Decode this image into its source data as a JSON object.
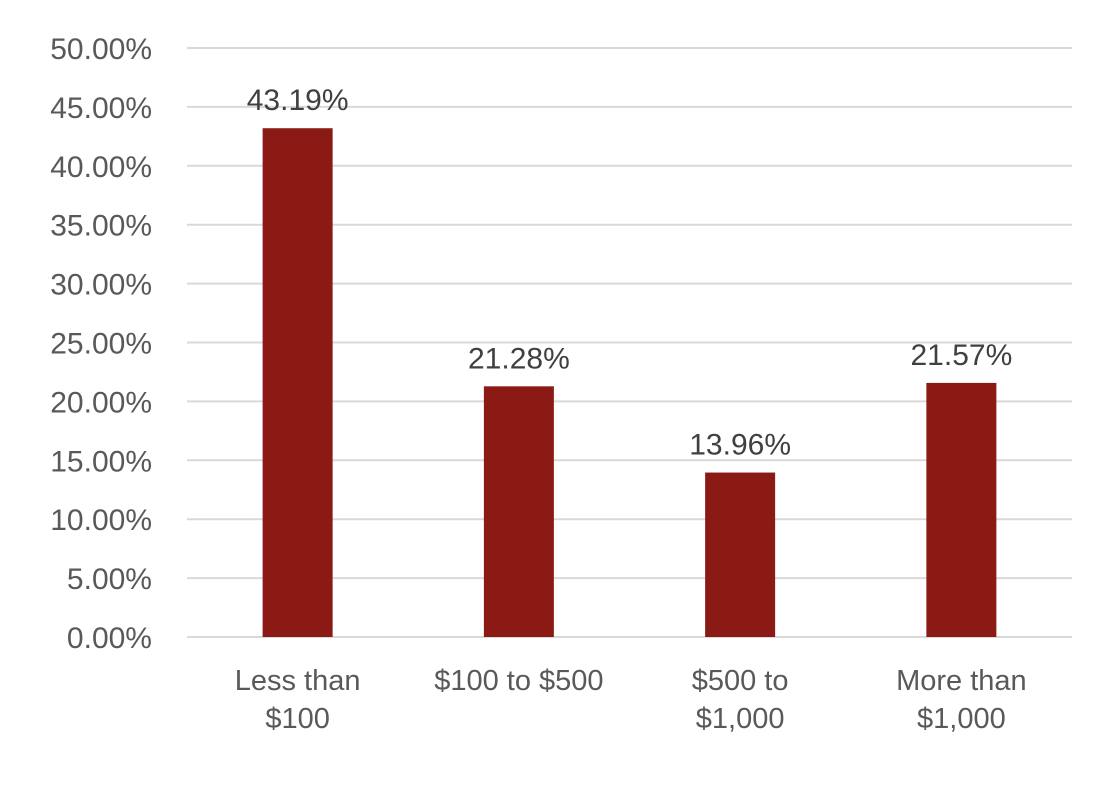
{
  "chart_data": {
    "type": "bar",
    "categories": [
      [
        "Less than",
        "$100"
      ],
      [
        "$100 to $500"
      ],
      [
        "$500 to",
        "$1,000"
      ],
      [
        "More than",
        "$1,000"
      ]
    ],
    "values": [
      43.19,
      21.28,
      13.96,
      21.57
    ],
    "data_labels": [
      "43.19%",
      "21.28%",
      "13.96%",
      "21.57%"
    ],
    "ylim": [
      0,
      50
    ],
    "y_ticks": [
      0,
      5,
      10,
      15,
      20,
      25,
      30,
      35,
      40,
      45,
      50
    ],
    "y_tick_labels": [
      "0.00%",
      "5.00%",
      "10.00%",
      "15.00%",
      "20.00%",
      "25.00%",
      "30.00%",
      "35.00%",
      "40.00%",
      "45.00%",
      "50.00%"
    ],
    "grid": true,
    "legend": "none",
    "title": "",
    "xlabel": "",
    "ylabel": "",
    "colors": {
      "bar": "#8B1A15",
      "grid": "#D9D9D9",
      "tick_text": "#595959",
      "data_label_text": "#404040"
    }
  }
}
